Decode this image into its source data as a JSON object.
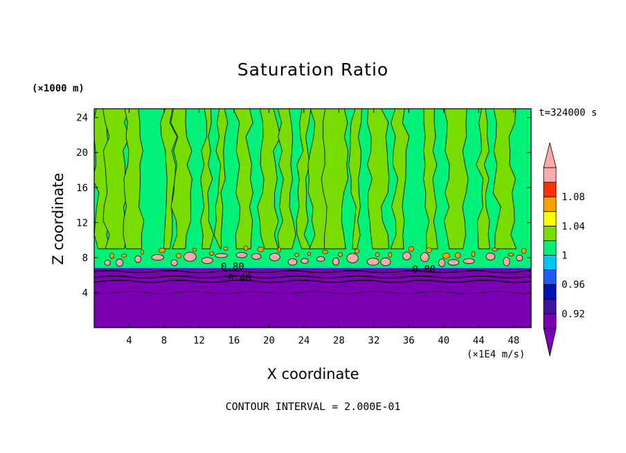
{
  "chart_data": {
    "type": "heatmap",
    "title": "Saturation Ratio",
    "xlabel": "X coordinate",
    "ylabel": "Z coordinate",
    "x_unit": "(×1E4 m/s)",
    "y_unit": "(×1000 m)",
    "time_label": "t=324000 s",
    "contour_interval_text": "CONTOUR INTERVAL = 2.000E-01",
    "xlim": [
      0,
      50
    ],
    "ylim": [
      0,
      25
    ],
    "x_ticks": [
      4,
      8,
      12,
      16,
      20,
      24,
      28,
      32,
      36,
      40,
      44,
      48
    ],
    "y_ticks": [
      4,
      8,
      12,
      16,
      20,
      24
    ],
    "colorbar": {
      "tick_labels": [
        "0.92",
        "0.96",
        "1",
        "1.04",
        "1.08"
      ],
      "levels": [
        0.9,
        0.92,
        0.94,
        0.96,
        0.98,
        1.0,
        1.02,
        1.04,
        1.06,
        1.08,
        1.1
      ],
      "colors": [
        "#7b00b4",
        "#3c14a0",
        "#0014b4",
        "#1e5aff",
        "#00c8ff",
        "#00f078",
        "#78dc00",
        "#ffff00",
        "#ffa000",
        "#ff3200",
        "#ffaaaa"
      ]
    },
    "contour_labels": [
      {
        "text": "0.80",
        "x": 14.5,
        "z": 6.6
      },
      {
        "text": "0.40",
        "x": 15.3,
        "z": 5.3
      },
      {
        "text": "0.80",
        "x": 36.4,
        "z": 6.3
      }
    ],
    "regions": {
      "lower_layer_top_km": 6.8,
      "dry_base_top_km": 4.0,
      "cloud_band_km": [
        6.8,
        9.5
      ],
      "moist_columns_x": [
        1,
        2.5,
        4.5,
        8.5,
        10,
        13,
        14.5,
        17,
        20,
        22,
        24,
        26,
        27.5,
        30,
        32.5,
        35,
        38.5,
        41.5,
        44.5,
        47
      ]
    }
  }
}
